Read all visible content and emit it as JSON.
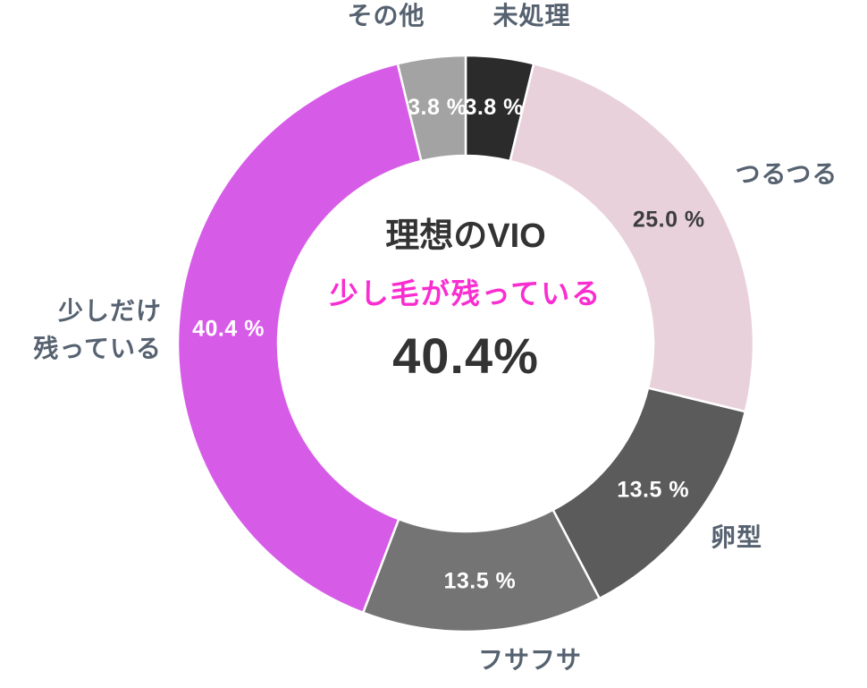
{
  "chart_data": {
    "type": "pie",
    "subtype": "donut",
    "direction": "clockwise",
    "start_angle_deg": 0,
    "background": "#ffffff",
    "legend": "none",
    "category_label_color": "#566270",
    "center_text": {
      "title": "理想のVIO",
      "title_color": "#333333",
      "highlight_label": "少し毛が残っている",
      "highlight_color": "#fa2dd0",
      "highlight_value": "40.4%",
      "value_color": "#333333"
    },
    "segments": [
      {
        "label": "未処理",
        "value": 3.8,
        "value_label": "3.8 %",
        "color": "#2b2b2b",
        "value_label_color": "#ffffff"
      },
      {
        "label": "つるつる",
        "value": 25.0,
        "value_label": "25.0 %",
        "color": "#e9d1dc",
        "value_label_color": "#3d3d3d"
      },
      {
        "label": "卵型",
        "value": 13.5,
        "value_label": "13.5 %",
        "color": "#5b5b5b",
        "value_label_color": "#ffffff"
      },
      {
        "label": "フサフサ",
        "value": 13.5,
        "value_label": "13.5 %",
        "color": "#747474",
        "value_label_color": "#ffffff"
      },
      {
        "label": "少しだけ\n残っている",
        "value": 40.4,
        "value_label": "40.4 %",
        "color": "#d65ce8",
        "value_label_color": "#ffffff"
      },
      {
        "label": "その他",
        "value": 3.8,
        "value_label": "3.8 %",
        "color": "#a3a3a3",
        "value_label_color": "#ffffff"
      }
    ]
  }
}
